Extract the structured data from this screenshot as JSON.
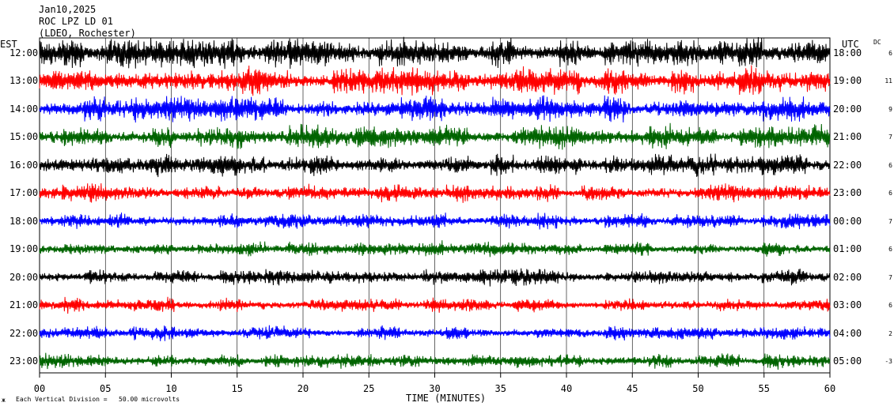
{
  "header": {
    "date": "Jan10,2025",
    "station": "ROC LPZ LD 01",
    "network": "(LDEO, Rochester)"
  },
  "labels": {
    "left_tz": "EST",
    "right_tz": "UTC",
    "dc": "DC",
    "xlabel": "TIME (MINUTES)",
    "scale_mark": "ж",
    "scale_note": "Each Vertical Division =   50.00 microvolts"
  },
  "chart_data": {
    "type": "line",
    "title": "ROC LPZ LD 01",
    "xlabel": "TIME (MINUTES)",
    "xlim": [
      0,
      60
    ],
    "x_ticks": [
      "00",
      "05",
      "10",
      "15",
      "20",
      "25",
      "30",
      "35",
      "40",
      "45",
      "50",
      "55",
      "60"
    ],
    "series_colors": [
      "#000000",
      "#ff0000",
      "#0000ff",
      "#006400"
    ],
    "rows": [
      {
        "est": "12:00",
        "utc": "18:00",
        "dc": "6",
        "color": "#000000",
        "amplitude": 1.0
      },
      {
        "est": "13:00",
        "utc": "19:00",
        "dc": "11",
        "color": "#ff0000",
        "amplitude": 1.0
      },
      {
        "est": "14:00",
        "utc": "20:00",
        "dc": "9",
        "color": "#0000ff",
        "amplitude": 0.85
      },
      {
        "est": "15:00",
        "utc": "21:00",
        "dc": "7",
        "color": "#006400",
        "amplitude": 0.8
      },
      {
        "est": "16:00",
        "utc": "22:00",
        "dc": "6",
        "color": "#000000",
        "amplitude": 0.75
      },
      {
        "est": "17:00",
        "utc": "23:00",
        "dc": "6",
        "color": "#ff0000",
        "amplitude": 0.65
      },
      {
        "est": "18:00",
        "utc": "00:00",
        "dc": "7",
        "color": "#0000ff",
        "amplitude": 0.55
      },
      {
        "est": "19:00",
        "utc": "01:00",
        "dc": "6",
        "color": "#006400",
        "amplitude": 0.5
      },
      {
        "est": "20:00",
        "utc": "02:00",
        "dc": "7",
        "color": "#000000",
        "amplitude": 0.55
      },
      {
        "est": "21:00",
        "utc": "03:00",
        "dc": "6",
        "color": "#ff0000",
        "amplitude": 0.5
      },
      {
        "est": "22:00",
        "utc": "04:00",
        "dc": "2",
        "color": "#0000ff",
        "amplitude": 0.5
      },
      {
        "est": "23:00",
        "utc": "05:00",
        "dc": "-3",
        "color": "#006400",
        "amplitude": 0.5
      }
    ],
    "grid": true
  }
}
